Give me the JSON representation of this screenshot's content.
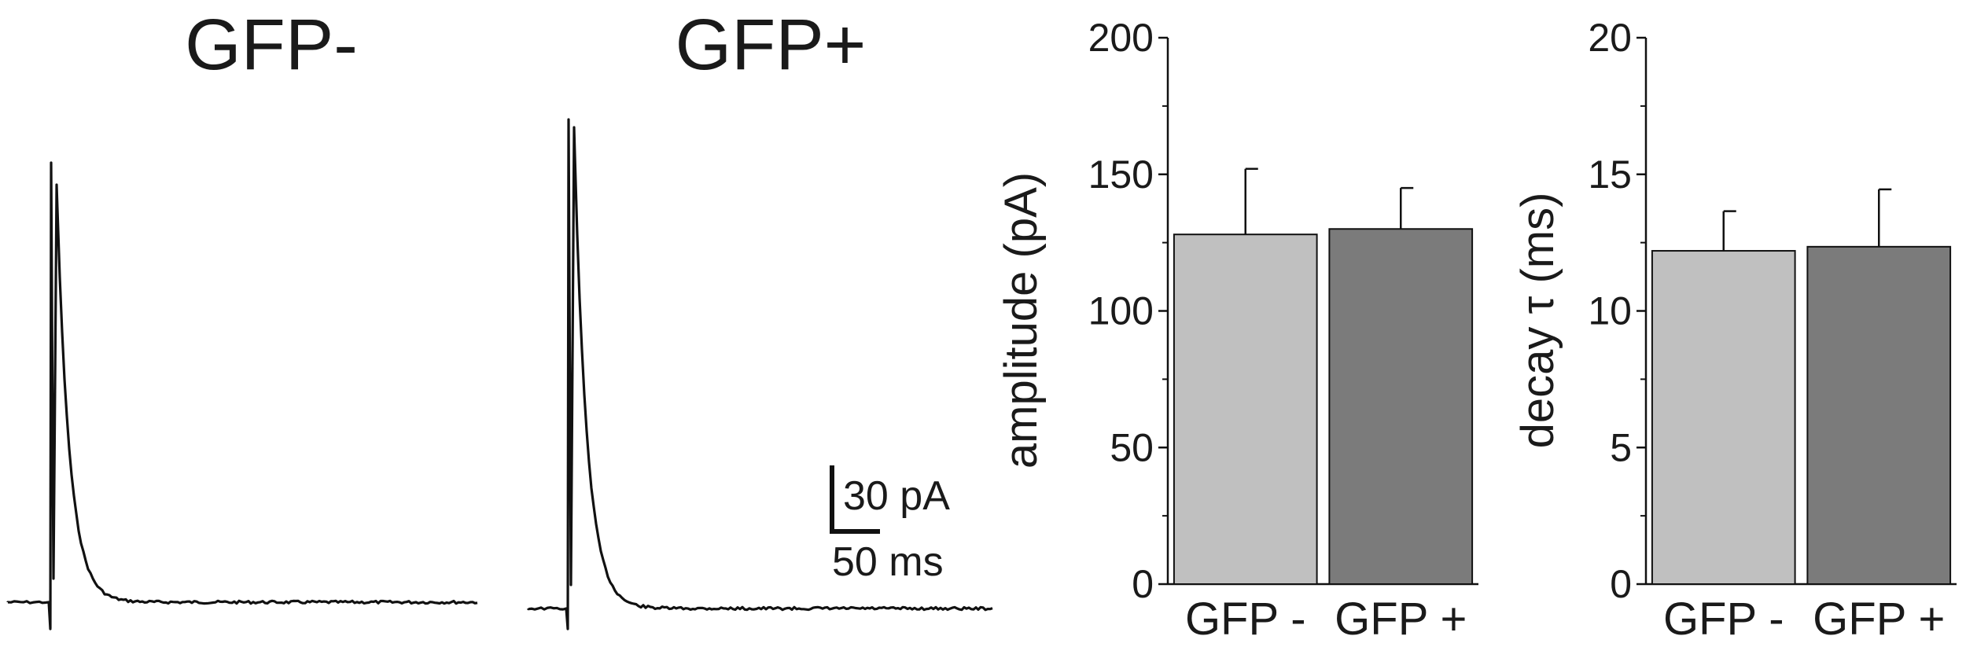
{
  "traces": {
    "panels": [
      {
        "title": "GFP-"
      },
      {
        "title": "GFP+"
      }
    ],
    "scale_bar": {
      "y_label": "30 pA",
      "x_label": "50 ms"
    },
    "line_color": "#111111"
  },
  "chart_data": [
    {
      "type": "bar",
      "categories": [
        "GFP -",
        "GFP +"
      ],
      "values": [
        128,
        130
      ],
      "errors": [
        24,
        15
      ],
      "ylabel": "amplitude (pA)",
      "ylim": [
        0,
        200
      ],
      "yticks": [
        "0",
        "50",
        "100",
        "150",
        "200"
      ],
      "colors": [
        "#c0c0c0",
        "#7b7b7b"
      ],
      "grid": false
    },
    {
      "type": "bar",
      "categories": [
        "GFP -",
        "GFP +"
      ],
      "values": [
        12.2,
        12.35
      ],
      "errors": [
        1.45,
        2.1
      ],
      "ylabel": "decay τ (ms)",
      "ylim": [
        0,
        20
      ],
      "yticks": [
        "0",
        "5",
        "10",
        "15",
        "20"
      ],
      "colors": [
        "#c0c0c0",
        "#7b7b7b"
      ],
      "grid": false
    }
  ]
}
